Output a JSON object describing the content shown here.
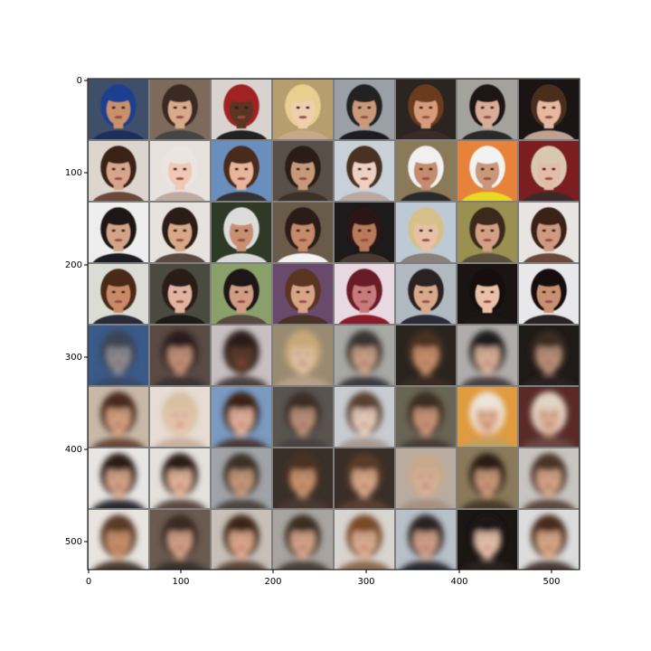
{
  "image_grid": {
    "rows": 8,
    "cols": 8,
    "separator_color": "#7f7f7f",
    "row_groups": [
      {
        "rows": [
          0,
          1,
          2,
          3
        ],
        "kind": "sharp-face-photos"
      },
      {
        "rows": [
          4,
          5,
          6,
          7
        ],
        "kind": "blurry-face-reconstructions"
      }
    ],
    "tiles": [
      {
        "bg": "#3f4f6a",
        "hair": "#1d3f8f",
        "skin": "#c9906a",
        "shirt": "#1f2f5a"
      },
      {
        "bg": "#7d6a5a",
        "hair": "#3a2a20",
        "skin": "#d8a98a",
        "shirt": "#444444"
      },
      {
        "bg": "#d9d3cf",
        "hair": "#a02020",
        "skin": "#5b3421",
        "shirt": "#222222"
      },
      {
        "bg": "#b79e6e",
        "hair": "#e8cf8f",
        "skin": "#f0cfae",
        "shirt": "#c8a888"
      },
      {
        "bg": "#9aa0a6",
        "hair": "#222222",
        "skin": "#c99a7a",
        "shirt": "#1e1e28"
      },
      {
        "bg": "#2a2520",
        "hair": "#6b3b1e",
        "skin": "#d79b7b",
        "shirt": "#3a2a2a"
      },
      {
        "bg": "#a4a29c",
        "hair": "#1a1414",
        "skin": "#d9ad95",
        "shirt": "#2a2a2a"
      },
      {
        "bg": "#1a1414",
        "hair": "#4a2e1e",
        "skin": "#e6b8a0",
        "shirt": "#c0a090"
      },
      {
        "bg": "#ddd6cf",
        "hair": "#3b2318",
        "skin": "#d7a58c",
        "shirt": "#6a4a3a"
      },
      {
        "bg": "#e8e2df",
        "hair": "#eae6df",
        "skin": "#f0c8b8",
        "shirt": "#bfaaa0"
      },
      {
        "bg": "#6a8fbf",
        "hair": "#4a2a1a",
        "skin": "#e8b49a",
        "shirt": "#333333"
      },
      {
        "bg": "#585048",
        "hair": "#2a1e18",
        "skin": "#c8987a",
        "shirt": "#3a3028"
      },
      {
        "bg": "#c8d0d8",
        "hair": "#4a3020",
        "skin": "#eed0c0",
        "shirt": "#b8a8a0"
      },
      {
        "bg": "#8a7a5a",
        "hair": "#f0f0f0",
        "skin": "#c48c6c",
        "shirt": "#2a2a2a"
      },
      {
        "bg": "#e6823a",
        "hair": "#f2f2f2",
        "skin": "#c89878",
        "shirt": "#e8d820"
      },
      {
        "bg": "#7a1e22",
        "hair": "#d8c8b0",
        "skin": "#e2bca8",
        "shirt": "#3a2a2a"
      },
      {
        "bg": "#eeeeee",
        "hair": "#1a1414",
        "skin": "#d4a488",
        "shirt": "#1c1c22"
      },
      {
        "bg": "#e6e2de",
        "hair": "#2a1e16",
        "skin": "#d8a888",
        "shirt": "#5a4a40"
      },
      {
        "bg": "#2e3a26",
        "hair": "#dcdcdc",
        "skin": "#c89070",
        "shirt": "#d8d8d8"
      },
      {
        "bg": "#6a5a4a",
        "hair": "#2a1a14",
        "skin": "#c48a6a",
        "shirt": "#f2f2f2"
      },
      {
        "bg": "#1c1a1a",
        "hair": "#2a1812",
        "skin": "#b87a5a",
        "shirt": "#4a3a30"
      },
      {
        "bg": "#bccad6",
        "hair": "#d6c08a",
        "skin": "#e8c0a8",
        "shirt": "#8a8078"
      },
      {
        "bg": "#9a9052",
        "hair": "#3a2a1c",
        "skin": "#d4a084",
        "shirt": "#5a503a"
      },
      {
        "bg": "#e8e4e2",
        "hair": "#3a2418",
        "skin": "#d09a80",
        "shirt": "#6a4a3a"
      },
      {
        "bg": "#dcdcd6",
        "hair": "#4a2a18",
        "skin": "#c88a66",
        "shirt": "#2a2a3a"
      },
      {
        "bg": "#4a4a40",
        "hair": "#2a1c14",
        "skin": "#e0b4a0",
        "shirt": "#1e1a18"
      },
      {
        "bg": "#8aa06a",
        "hair": "#1e1614",
        "skin": "#d09c84",
        "shirt": "#5a4a40"
      },
      {
        "bg": "#6a4a6a",
        "hair": "#5a3424",
        "skin": "#d8a488",
        "shirt": "#4a3028"
      },
      {
        "bg": "#e8d8e0",
        "hair": "#6a1a28",
        "skin": "#c87a7a",
        "shirt": "#8a1a2a"
      },
      {
        "bg": "#b0b8c0",
        "hair": "#2a2420",
        "skin": "#d8a888",
        "shirt": "#2a2a3a"
      },
      {
        "bg": "#1a1414",
        "hair": "#120e0e",
        "skin": "#e8c0a8",
        "shirt": "#1a1414"
      },
      {
        "bg": "#e8e8ea",
        "hair": "#141010",
        "skin": "#c89072",
        "shirt": "#2a2020"
      },
      {
        "bg": "#3a5a8a",
        "hair": "#3a4454",
        "skin": "#8a8a90",
        "shirt": "#3a4a6a"
      },
      {
        "bg": "#5a4a44",
        "hair": "#2a1e1a",
        "skin": "#c09078",
        "shirt": "#3a3030"
      },
      {
        "bg": "#c8c0c0",
        "hair": "#2a1e1a",
        "skin": "#5a3a2a",
        "shirt": "#4a4040"
      },
      {
        "bg": "#9a8a70",
        "hair": "#c8a878",
        "skin": "#e0c0a0",
        "shirt": "#b8a08a"
      },
      {
        "bg": "#a8a8a4",
        "hair": "#3a3430",
        "skin": "#c8a088",
        "shirt": "#3a3a40"
      },
      {
        "bg": "#2a2420",
        "hair": "#4a3024",
        "skin": "#c8906a",
        "shirt": "#3a2a24"
      },
      {
        "bg": "#b0acaa",
        "hair": "#1e1a1a",
        "skin": "#d8b098",
        "shirt": "#4a4040"
      },
      {
        "bg": "#1e1a18",
        "hair": "#3a2a20",
        "skin": "#b89078",
        "shirt": "#2a2420"
      },
      {
        "bg": "#c8b8a8",
        "hair": "#4a2a1a",
        "skin": "#d4a080",
        "shirt": "#6a4a3a"
      },
      {
        "bg": "#e6dcd4",
        "hair": "#d8c0a0",
        "skin": "#e8c4ac",
        "shirt": "#c8b0a0"
      },
      {
        "bg": "#7a9ac0",
        "hair": "#3a2418",
        "skin": "#e0b09a",
        "shirt": "#4a3a3a"
      },
      {
        "bg": "#5a5450",
        "hair": "#3a2e28",
        "skin": "#b89078",
        "shirt": "#4a4040"
      },
      {
        "bg": "#c8ccd0",
        "hair": "#5a4030",
        "skin": "#e8ccbc",
        "shirt": "#a89890"
      },
      {
        "bg": "#6a6454",
        "hair": "#3a2e24",
        "skin": "#c89478",
        "shirt": "#4a3e34"
      },
      {
        "bg": "#e09a40",
        "hair": "#ece4d8",
        "skin": "#e0b090",
        "shirt": "#c0a060"
      },
      {
        "bg": "#5a2a28",
        "hair": "#e0d4c4",
        "skin": "#dcb098",
        "shirt": "#6a4a44"
      },
      {
        "bg": "#e8e6e4",
        "hair": "#2a1e18",
        "skin": "#d4a488",
        "shirt": "#2a2a30"
      },
      {
        "bg": "#e4e0dc",
        "hair": "#2a1e16",
        "skin": "#e0b49a",
        "shirt": "#5a4a40"
      },
      {
        "bg": "#a0a4a8",
        "hair": "#3a3028",
        "skin": "#c4987c",
        "shirt": "#4a4440"
      },
      {
        "bg": "#3a302a",
        "hair": "#4a3024",
        "skin": "#c8946e",
        "shirt": "#4a3a30"
      },
      {
        "bg": "#3a2e28",
        "hair": "#5a3a28",
        "skin": "#d8a888",
        "shirt": "#5a4030"
      },
      {
        "bg": "#b8aca0",
        "hair": "#c8a888",
        "skin": "#d8b098",
        "shirt": "#a89080"
      },
      {
        "bg": "#8a7a5a",
        "hair": "#2a1e18",
        "skin": "#c89878",
        "shirt": "#4a3a2a"
      },
      {
        "bg": "#c8c4c0",
        "hair": "#4a3428",
        "skin": "#d4a488",
        "shirt": "#5a4a40"
      },
      {
        "bg": "#e8e4e0",
        "hair": "#5a3a28",
        "skin": "#c8906a",
        "shirt": "#4a3a30"
      },
      {
        "bg": "#6a5a50",
        "hair": "#3a2a20",
        "skin": "#d0a088",
        "shirt": "#3a302a"
      },
      {
        "bg": "#c8c0b8",
        "hair": "#3a2818",
        "skin": "#dca88c",
        "shirt": "#5a4434"
      },
      {
        "bg": "#a8a4a0",
        "hair": "#3a2e24",
        "skin": "#d4a48a",
        "shirt": "#4a4038"
      },
      {
        "bg": "#d8d4d0",
        "hair": "#7a4a28",
        "skin": "#dcae90",
        "shirt": "#8a6a50"
      },
      {
        "bg": "#b8c0c8",
        "hair": "#2a2420",
        "skin": "#d0a08a",
        "shirt": "#2a2a34"
      },
      {
        "bg": "#1a1614",
        "hair": "#1e1614",
        "skin": "#e6c0aa",
        "shirt": "#2a2220"
      },
      {
        "bg": "#dcdcdc",
        "hair": "#4a2a1c",
        "skin": "#d8a888",
        "shirt": "#4a3a34"
      }
    ]
  },
  "axes": {
    "xticks": [
      "0",
      "100",
      "200",
      "300",
      "400",
      "500"
    ],
    "yticks": [
      "0",
      "100",
      "200",
      "300",
      "400",
      "500"
    ]
  }
}
